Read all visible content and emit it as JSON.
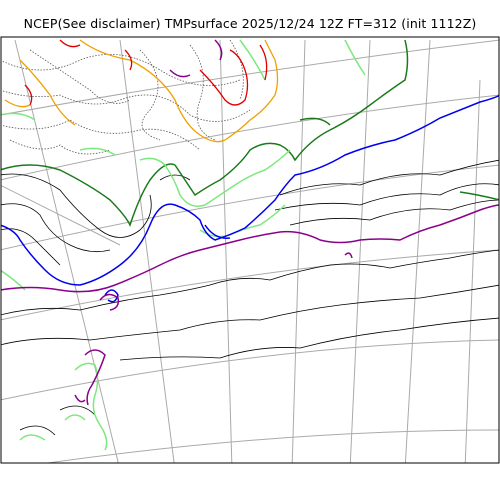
{
  "map": {
    "title": "NCEP(See disclaimer) TMPsurface 2025/12/24 12Z FT=312 (init 1112Z)",
    "colors": {
      "background": "#ffffff",
      "frame": "#000000",
      "graticule": "#aaaaaa",
      "contour_minor": "#000000",
      "contour_dotted": "#555555",
      "green_dark": "#1a7a1a",
      "green_light": "#7de87d",
      "blue": "#0000ee",
      "purple": "#8b008b",
      "orange": "#f0a000",
      "red": "#e00000"
    }
  }
}
